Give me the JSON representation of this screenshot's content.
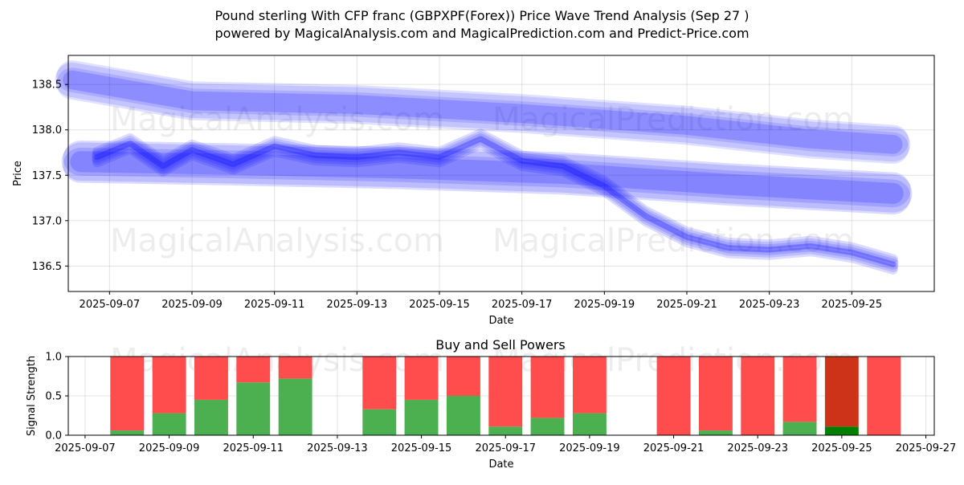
{
  "header": {
    "title_line1": "Pound sterling With CFP franc (GBPXPF(Forex)) Price Wave Trend Analysis (Sep 27 )",
    "title_line2": "powered by MagicalAnalysis.com and MagicalPrediction.com and Predict-Price.com"
  },
  "watermarks": [
    "MagicalAnalysis.com",
    "MagicalPrediction.com"
  ],
  "colors": {
    "wave": "#0000ff",
    "buy": "#4caf50",
    "sell": "#ff4d4d",
    "buy_dark": "#008000",
    "sell_dark": "#cc3318"
  },
  "chart_data": [
    {
      "type": "area",
      "title": "",
      "xlabel": "Date",
      "ylabel": "Price",
      "xlim": [
        "2025-09-06",
        "2025-09-27"
      ],
      "ylim": [
        136.22,
        138.82
      ],
      "x_ticks": [
        "2025-09-07",
        "2025-09-09",
        "2025-09-11",
        "2025-09-13",
        "2025-09-15",
        "2025-09-17",
        "2025-09-19",
        "2025-09-21",
        "2025-09-23",
        "2025-09-25"
      ],
      "y_ticks": [
        "136.5",
        "137.0",
        "137.5",
        "138.0",
        "138.5"
      ],
      "grid": true,
      "series": [
        {
          "band_width": 0.38,
          "values": [
            {
              "x": "2025-09-06.1",
              "y": 138.55
            },
            {
              "x": "2025-09-09",
              "y": 138.32
            },
            {
              "x": "2025-09-13",
              "y": 138.28
            },
            {
              "x": "2025-09-17",
              "y": 138.18
            },
            {
              "x": "2025-09-21",
              "y": 138.05
            },
            {
              "x": "2025-09-24",
              "y": 137.9
            },
            {
              "x": "2025-09-26",
              "y": 137.84
            }
          ]
        },
        {
          "band_width": 0.42,
          "values": [
            {
              "x": "2025-09-06.3",
              "y": 137.65
            },
            {
              "x": "2025-09-10",
              "y": 137.62
            },
            {
              "x": "2025-09-14",
              "y": 137.58
            },
            {
              "x": "2025-09-18",
              "y": 137.52
            },
            {
              "x": "2025-09-22",
              "y": 137.4
            },
            {
              "x": "2025-09-26",
              "y": 137.3
            }
          ]
        },
        {
          "band_width": 0.12,
          "values": [
            {
              "x": "2025-09-06.7",
              "y": 137.7
            },
            {
              "x": "2025-09-07.5",
              "y": 137.85
            },
            {
              "x": "2025-09-08.3",
              "y": 137.6
            },
            {
              "x": "2025-09-09",
              "y": 137.78
            },
            {
              "x": "2025-09-10",
              "y": 137.62
            },
            {
              "x": "2025-09-11",
              "y": 137.82
            },
            {
              "x": "2025-09-12",
              "y": 137.72
            },
            {
              "x": "2025-09-13",
              "y": 137.7
            },
            {
              "x": "2025-09-14",
              "y": 137.75
            },
            {
              "x": "2025-09-15",
              "y": 137.7
            },
            {
              "x": "2025-09-16",
              "y": 137.9
            },
            {
              "x": "2025-09-17",
              "y": 137.66
            },
            {
              "x": "2025-09-18",
              "y": 137.6
            },
            {
              "x": "2025-09-19",
              "y": 137.38
            },
            {
              "x": "2025-09-20",
              "y": 137.05
            },
            {
              "x": "2025-09-21",
              "y": 136.82
            },
            {
              "x": "2025-09-22",
              "y": 136.7
            },
            {
              "x": "2025-09-23",
              "y": 136.68
            },
            {
              "x": "2025-09-24",
              "y": 136.72
            },
            {
              "x": "2025-09-25",
              "y": 136.65
            },
            {
              "x": "2025-09-26",
              "y": 136.52
            }
          ]
        }
      ]
    },
    {
      "type": "bar",
      "title": "Buy and Sell Powers",
      "xlabel": "Date",
      "ylabel": "Signal Strength",
      "xlim": [
        "2025-09-06.6",
        "2025-09-27.2"
      ],
      "ylim": [
        0,
        1.0
      ],
      "x_ticks": [
        "2025-09-07",
        "2025-09-09",
        "2025-09-11",
        "2025-09-13",
        "2025-09-15",
        "2025-09-17",
        "2025-09-19",
        "2025-09-21",
        "2025-09-23",
        "2025-09-25",
        "2025-09-27"
      ],
      "y_ticks": [
        "0.0",
        "0.5",
        "1.0"
      ],
      "grid": true,
      "series": [
        {
          "name": "",
          "values": [
            {
              "x": "2025-09-08",
              "buy": 0.06,
              "sell": 0.94
            },
            {
              "x": "2025-09-09",
              "buy": 0.28,
              "sell": 0.72
            },
            {
              "x": "2025-09-10",
              "buy": 0.45,
              "sell": 0.55
            },
            {
              "x": "2025-09-11",
              "buy": 0.67,
              "sell": 0.33
            },
            {
              "x": "2025-09-12",
              "buy": 0.72,
              "sell": 0.28
            },
            {
              "x": "2025-09-14",
              "buy": 0.33,
              "sell": 0.67
            },
            {
              "x": "2025-09-15",
              "buy": 0.45,
              "sell": 0.55
            },
            {
              "x": "2025-09-16",
              "buy": 0.5,
              "sell": 0.5
            },
            {
              "x": "2025-09-17",
              "buy": 0.11,
              "sell": 0.89
            },
            {
              "x": "2025-09-18",
              "buy": 0.22,
              "sell": 0.78
            },
            {
              "x": "2025-09-19",
              "buy": 0.28,
              "sell": 0.72
            },
            {
              "x": "2025-09-21",
              "buy": 0.0,
              "sell": 1.0
            },
            {
              "x": "2025-09-22",
              "buy": 0.06,
              "sell": 0.94
            },
            {
              "x": "2025-09-23",
              "buy": 0.0,
              "sell": 1.0
            },
            {
              "x": "2025-09-24",
              "buy": 0.17,
              "sell": 0.83
            },
            {
              "x": "2025-09-25",
              "buy": 0.11,
              "sell": 0.89,
              "highlight": true
            },
            {
              "x": "2025-09-26",
              "buy": 0.0,
              "sell": 1.0
            }
          ]
        }
      ]
    }
  ]
}
